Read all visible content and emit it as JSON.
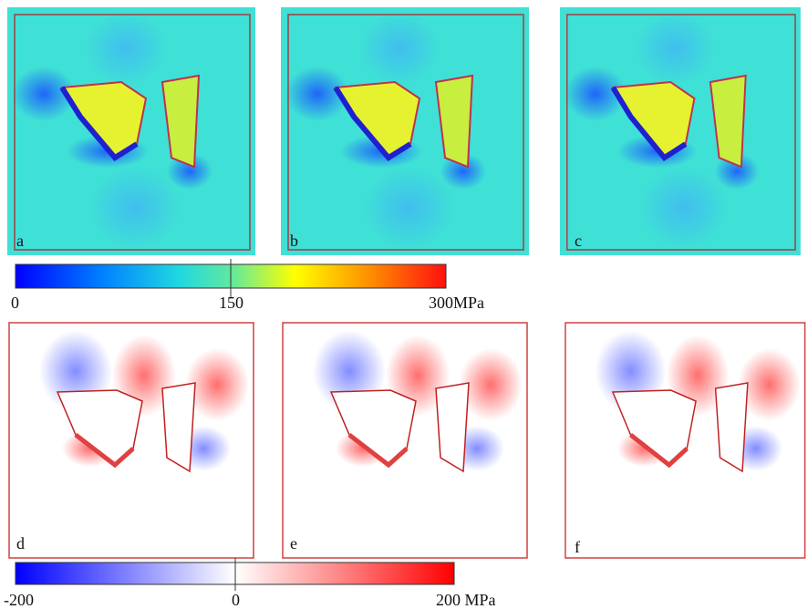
{
  "panels": [
    {
      "label": "a"
    },
    {
      "label": "b"
    },
    {
      "label": "c"
    },
    {
      "label": "d"
    },
    {
      "label": "e"
    },
    {
      "label": "f"
    }
  ],
  "colorbars": [
    {
      "labels": [
        "0",
        "150",
        "300MPa"
      ]
    },
    {
      "labels": [
        "-200",
        "0",
        "200 MPa"
      ]
    }
  ]
}
